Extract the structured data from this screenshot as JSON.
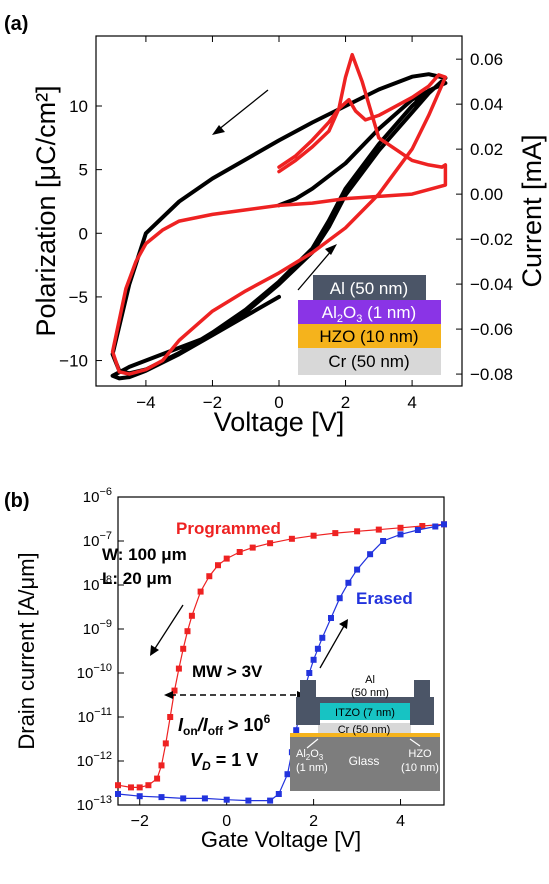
{
  "panel_a": {
    "label": "(a)",
    "stack_layers": [
      {
        "label": "Al (50 nm)",
        "color": "#4b5567",
        "text_color": "#ffffff"
      },
      {
        "label_main": "Al",
        "label_sub": "2",
        "label_mid": "O",
        "label_sub2": "3",
        "label_tail": " (1 nm)",
        "color": "#8a34e6",
        "text_color": "#ffffff"
      },
      {
        "label": "HZO (10 nm)",
        "color": "#f5b31c",
        "text_color": "#000000"
      },
      {
        "label": "Cr (50 nm)",
        "color": "#d8d8d8",
        "text_color": "#000000"
      }
    ]
  },
  "panel_b": {
    "label": "(b)",
    "annotations": {
      "programmed": "Programmed",
      "erased": "Erased",
      "w": "W: 100 μm",
      "l": "L: 20 μm",
      "mw": "MW > 3V",
      "ion_ioff_prefix": "I",
      "ion_sub": "on",
      "ion_slash": "/I",
      "ioff_sub": "off",
      "ion_ioff_suffix": " > 10",
      "ion_ioff_exp": "6",
      "vd_v": "V",
      "vd_sub": "D",
      "vd_suffix": " = 1 V"
    },
    "inset": {
      "al": "Al",
      "al_thick": "(50 nm)",
      "itzo": "ITZO (7 nm)",
      "cr": "Cr (50 nm)",
      "al2o3_a": "Al",
      "al2o3_sub1": "2",
      "al2o3_b": "O",
      "al2o3_sub2": "3",
      "al2o3_thick": "(1 nm)",
      "glass": "Glass",
      "hzo": "HZO",
      "hzo_thick": "(10 nm)"
    }
  },
  "chart_data": [
    {
      "type": "line",
      "xlabel": "Voltage [V]",
      "ylabel": "Polarization [μC/cm²]",
      "ylabel_right": "Current [mA]",
      "xlim": [
        -5.5,
        5.5
      ],
      "ylim": [
        -12,
        15.5
      ],
      "ylim_right": [
        -0.0853,
        0.0703
      ],
      "x_ticks": [
        -4,
        -2,
        0,
        2,
        4
      ],
      "y_ticks": [
        -10,
        -5,
        0,
        5,
        10
      ],
      "y_ticks_right": [
        "0.06",
        "0.04",
        "0.02",
        "0.00",
        "−0.02",
        "−0.04",
        "−0.06",
        "−0.08"
      ],
      "series": [
        {
          "color": "#000000",
          "axis": "left",
          "x": [
            0,
            -1,
            -2,
            -3,
            -4,
            -4.5,
            -5,
            -4.8,
            -4.5,
            -4,
            -3,
            -2,
            -1,
            0,
            1,
            1.5,
            2,
            3,
            4,
            4.5,
            5,
            4.5,
            4,
            3,
            2,
            1,
            0,
            -1,
            -2,
            -3,
            -4,
            -4.5,
            -5,
            -4.8,
            -4.5,
            -4,
            -3,
            -2,
            -1,
            0,
            1,
            1.5,
            2,
            3,
            4,
            4.5,
            5,
            4.8,
            4,
            3,
            2,
            1,
            0.5,
            0
          ],
          "y": [
            -5,
            -6.5,
            -8,
            -9,
            -10,
            -10.5,
            -11.2,
            -11.4,
            -11.3,
            -10.8,
            -9.5,
            -8,
            -6.2,
            -4,
            -1.5,
            0.5,
            3,
            6.5,
            9.5,
            11,
            12.2,
            12.5,
            12.3,
            11.3,
            10,
            8.7,
            7.3,
            5.8,
            4.3,
            2.5,
            0,
            -4,
            -9.5,
            -10.8,
            -11,
            -10.7,
            -9.4,
            -7.8,
            -6,
            -3.8,
            -1.2,
            1,
            3.5,
            7,
            10,
            11.2,
            11.8,
            11.6,
            10.5,
            8.2,
            5.5,
            3.5,
            2.7,
            2.2
          ]
        },
        {
          "color": "#ee2222",
          "axis": "right",
          "x": [
            0,
            0.5,
            1,
            1.5,
            1.8,
            2,
            2.2,
            2.5,
            3,
            4,
            4.5,
            4.9,
            5,
            5,
            4,
            3,
            2,
            1,
            0,
            -1,
            -2,
            -3,
            -3.5,
            -4,
            -4.3,
            -4.6,
            -5,
            -4.8,
            -4.5,
            -4,
            -3.5,
            -3,
            -2,
            -1,
            0,
            1,
            2,
            3,
            4,
            4.5,
            5,
            4.8,
            4.5,
            4,
            3,
            2.6,
            2.3,
            2.1,
            1.8,
            1.5,
            1,
            0.5,
            0
          ],
          "y": [
            0.01,
            0.015,
            0.021,
            0.028,
            0.038,
            0.052,
            0.062,
            0.05,
            0.025,
            0.015,
            0.013,
            0.012,
            0.013,
            0.004,
            0.0,
            -0.001,
            -0.002,
            -0.004,
            -0.005,
            -0.007,
            -0.009,
            -0.012,
            -0.016,
            -0.022,
            -0.03,
            -0.042,
            -0.07,
            -0.079,
            -0.08,
            -0.078,
            -0.074,
            -0.065,
            -0.052,
            -0.043,
            -0.035,
            -0.026,
            -0.015,
            0.0,
            0.02,
            0.035,
            0.052,
            0.053,
            0.048,
            0.043,
            0.035,
            0.033,
            0.037,
            0.042,
            0.038,
            0.032,
            0.024,
            0.017,
            0.012
          ]
        }
      ],
      "annotations": [
        "arrow down-left at top",
        "arrow up-right at bottom"
      ]
    },
    {
      "type": "scatter",
      "xlabel": "Gate Voltage [V]",
      "ylabel": "Drain current [A/μm]",
      "xlim": [
        -2.5,
        5
      ],
      "ylim_log10": [
        -13,
        -6
      ],
      "y_scale": "log",
      "x_ticks": [
        -2,
        0,
        2,
        4
      ],
      "y_ticks": [
        {
          "base": "10",
          "exp": "−13"
        },
        {
          "base": "10",
          "exp": "−12"
        },
        {
          "base": "10",
          "exp": "−11"
        },
        {
          "base": "10",
          "exp": "−10"
        },
        {
          "base": "10",
          "exp": "−9"
        },
        {
          "base": "10",
          "exp": "−8"
        },
        {
          "base": "10",
          "exp": "−7"
        },
        {
          "base": "10",
          "exp": "−6"
        }
      ],
      "series": [
        {
          "name": "Programmed",
          "color": "#ee2222",
          "x": [
            -2.5,
            -2.2,
            -2.0,
            -1.8,
            -1.6,
            -1.5,
            -1.4,
            -1.3,
            -1.2,
            -1.1,
            -1.0,
            -0.9,
            -0.8,
            -0.6,
            -0.4,
            -0.2,
            0.0,
            0.3,
            0.6,
            1.0,
            1.5,
            2.0,
            2.5,
            3.0,
            3.5,
            4.0,
            4.5,
            5.0
          ],
          "log10y": [
            -12.55,
            -12.6,
            -12.6,
            -12.55,
            -12.4,
            -12.1,
            -11.6,
            -11.0,
            -10.4,
            -9.9,
            -9.45,
            -9.05,
            -8.7,
            -8.15,
            -7.8,
            -7.55,
            -7.4,
            -7.25,
            -7.15,
            -7.05,
            -6.95,
            -6.88,
            -6.82,
            -6.78,
            -6.74,
            -6.7,
            -6.66,
            -6.62
          ]
        },
        {
          "name": "Erased",
          "color": "#2233dd",
          "x": [
            -2.5,
            -2.0,
            -1.5,
            -1.0,
            -0.5,
            0.0,
            0.5,
            1.0,
            1.2,
            1.4,
            1.5,
            1.6,
            1.7,
            1.8,
            1.9,
            2.0,
            2.1,
            2.2,
            2.4,
            2.6,
            2.8,
            3.0,
            3.3,
            3.6,
            4.0,
            4.4,
            4.8,
            5.0
          ],
          "log10y": [
            -12.75,
            -12.8,
            -12.82,
            -12.85,
            -12.85,
            -12.88,
            -12.9,
            -12.9,
            -12.75,
            -12.3,
            -11.8,
            -11.3,
            -10.8,
            -10.35,
            -10.0,
            -9.7,
            -9.45,
            -9.2,
            -8.75,
            -8.3,
            -7.95,
            -7.65,
            -7.3,
            -7.0,
            -6.85,
            -6.75,
            -6.67,
            -6.62
          ]
        }
      ]
    }
  ]
}
